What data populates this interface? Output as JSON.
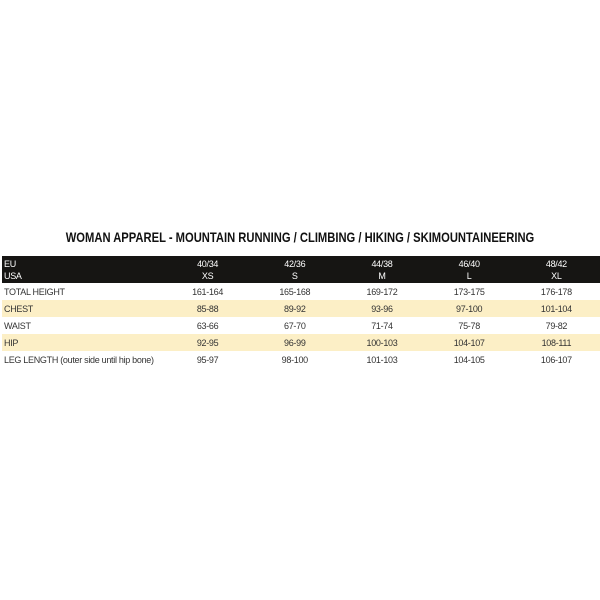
{
  "title": "WOMAN APPAREL - MOUNTAIN RUNNING / CLIMBING / HIKING / SKIMOUNTAINEERING",
  "header": {
    "label_eu": "EU",
    "label_usa": "USA",
    "sizes": [
      {
        "eu": "40/34",
        "usa": "XS"
      },
      {
        "eu": "42/36",
        "usa": "S"
      },
      {
        "eu": "44/38",
        "usa": "M"
      },
      {
        "eu": "46/40",
        "usa": "L"
      },
      {
        "eu": "48/42",
        "usa": "XL"
      }
    ]
  },
  "rows": [
    {
      "label": "TOTAL HEIGHT",
      "values": [
        "161-164",
        "165-168",
        "169-172",
        "173-175",
        "176-178"
      ]
    },
    {
      "label": "CHEST",
      "values": [
        "85-88",
        "89-92",
        "93-96",
        "97-100",
        "101-104"
      ]
    },
    {
      "label": "WAIST",
      "values": [
        "63-66",
        "67-70",
        "71-74",
        "75-78",
        "79-82"
      ]
    },
    {
      "label": "HIP",
      "values": [
        "92-95",
        "96-99",
        "100-103",
        "104-107",
        "108-111"
      ]
    },
    {
      "label": "LEG LENGTH (outer side until hip bone)",
      "values": [
        "95-97",
        "98-100",
        "101-103",
        "104-105",
        "106-107"
      ]
    }
  ],
  "colors": {
    "header_bg": "#161513",
    "alt_row_bg": "#fcefc6"
  }
}
